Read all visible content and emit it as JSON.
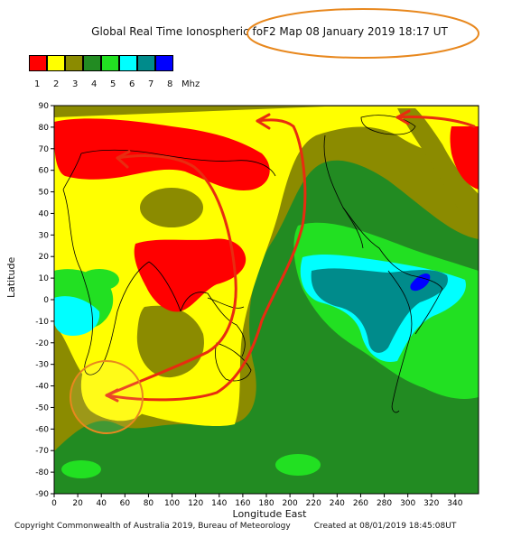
{
  "title": "Global Real Time Ionospheric foF2 Map   08 January 2019 18:17 UT",
  "legend": {
    "unit": "Mhz",
    "items": [
      {
        "label": "1",
        "color": "#ff0000"
      },
      {
        "label": "2",
        "color": "#ffff00"
      },
      {
        "label": "3",
        "color": "#8b8b00"
      },
      {
        "label": "4",
        "color": "#228b22"
      },
      {
        "label": "5",
        "color": "#22e022"
      },
      {
        "label": "6",
        "color": "#00ffff"
      },
      {
        "label": "7",
        "color": "#008b8b"
      },
      {
        "label": "8",
        "color": "#0000ff"
      }
    ]
  },
  "axes": {
    "ylabel": "Latitude",
    "xlabel": "Longitude East",
    "yticks": [
      "90",
      "80",
      "70",
      "60",
      "50",
      "40",
      "30",
      "20",
      "10",
      "0",
      "-10",
      "-20",
      "-30",
      "-40",
      "-50",
      "-60",
      "-70",
      "-80",
      "-90"
    ],
    "xticks": [
      "0",
      "20",
      "40",
      "60",
      "80",
      "100",
      "120",
      "140",
      "160",
      "180",
      "200",
      "220",
      "240",
      "260",
      "280",
      "300",
      "320",
      "340"
    ]
  },
  "footer": {
    "copyright": "Copyright Commonwealth of Australia 2019, Bureau of Meteorology",
    "created": "Created at 08/01/2019 18:45:08UT"
  },
  "annotation_color": "#e8881e",
  "arrow_color": "#e82c10"
}
